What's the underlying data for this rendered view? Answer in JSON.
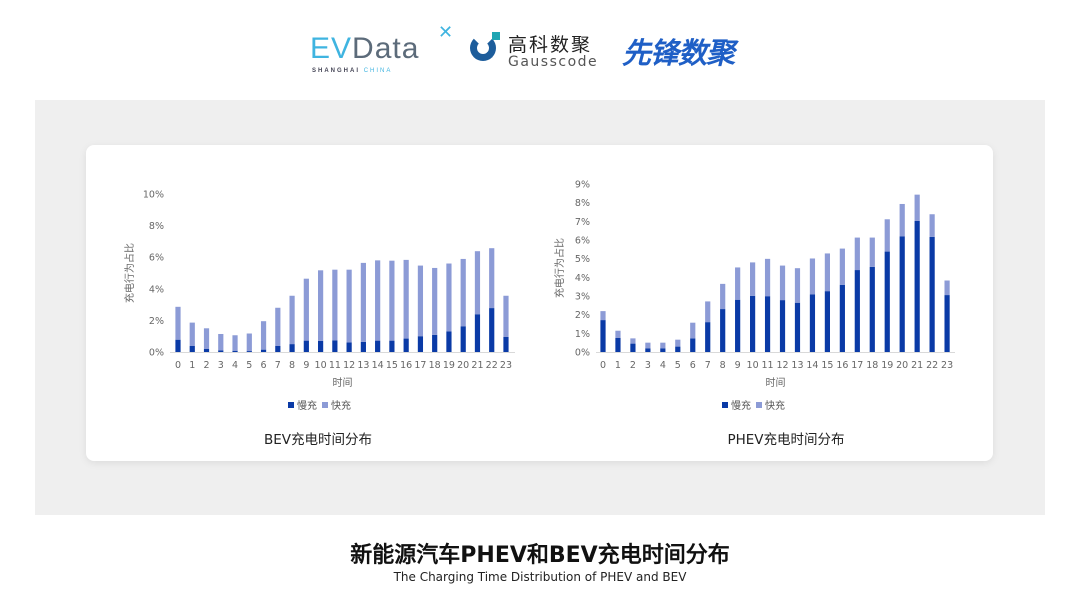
{
  "logos": {
    "evdata": {
      "text_e": "EV",
      "text_rest": "Data",
      "sub_a": "SHANGHAI",
      "sub_b": "CHINA"
    },
    "gausscode": {
      "cn": "高科数聚",
      "en": "Gausscode"
    },
    "xianfeng": {
      "cn": "先锋数聚"
    }
  },
  "colors": {
    "slow": "#0a3aa6",
    "fast": "#8c9bd6",
    "axis_text": "#666666",
    "background": "#efefef"
  },
  "title": "新能源汽车PHEV和BEV充电时间分布",
  "subtitle": "The Charging Time Distribution of PHEV and BEV",
  "chart_data": [
    {
      "type": "bar",
      "stacked": true,
      "title": "BEV充电时间分布",
      "xlabel": "时间",
      "ylabel": "充电行为占比",
      "categories": [
        "0",
        "1",
        "2",
        "3",
        "4",
        "5",
        "6",
        "7",
        "8",
        "9",
        "10",
        "11",
        "12",
        "13",
        "14",
        "15",
        "16",
        "17",
        "18",
        "19",
        "20",
        "21",
        "22",
        "23"
      ],
      "ylim": [
        0,
        10
      ],
      "yticks": [
        "0%",
        "2%",
        "4%",
        "6%",
        "8%",
        "10%"
      ],
      "ytick_values": [
        0,
        2,
        4,
        6,
        8,
        10
      ],
      "legend": "bottom",
      "grid": false,
      "series": [
        {
          "name": "慢充",
          "values": [
            0.78,
            0.38,
            0.19,
            0.1,
            0.08,
            0.06,
            0.15,
            0.38,
            0.5,
            0.72,
            0.7,
            0.74,
            0.61,
            0.64,
            0.72,
            0.72,
            0.85,
            1.0,
            1.08,
            1.31,
            1.63,
            2.39,
            2.78,
            0.95
          ]
        },
        {
          "name": "快充",
          "values": [
            2.08,
            1.48,
            1.31,
            1.04,
            0.98,
            1.11,
            1.8,
            2.42,
            3.06,
            3.92,
            4.47,
            4.47,
            4.6,
            5.0,
            5.08,
            5.06,
            4.98,
            4.47,
            4.24,
            4.29,
            4.26,
            3.99,
            3.79,
            2.61
          ]
        }
      ]
    },
    {
      "type": "bar",
      "stacked": true,
      "title": "PHEV充电时间分布",
      "xlabel": "时间",
      "ylabel": "充电行为占比",
      "categories": [
        "0",
        "1",
        "2",
        "3",
        "4",
        "5",
        "6",
        "7",
        "8",
        "9",
        "10",
        "11",
        "12",
        "13",
        "14",
        "15",
        "16",
        "17",
        "18",
        "19",
        "20",
        "21",
        "22",
        "23"
      ],
      "ylim": [
        0,
        9
      ],
      "yticks": [
        "0%",
        "1%",
        "2%",
        "3%",
        "4%",
        "5%",
        "6%",
        "7%",
        "8%",
        "9%"
      ],
      "ytick_values": [
        0,
        1,
        2,
        3,
        4,
        5,
        6,
        7,
        8,
        9
      ],
      "legend": "bottom",
      "grid": false,
      "series": [
        {
          "name": "慢充",
          "values": [
            1.71,
            0.75,
            0.45,
            0.2,
            0.2,
            0.29,
            0.73,
            1.6,
            2.3,
            2.8,
            3.01,
            2.99,
            2.78,
            2.64,
            3.08,
            3.26,
            3.6,
            4.39,
            4.56,
            5.38,
            6.2,
            7.02,
            6.17,
            3.05
          ]
        },
        {
          "name": "快充",
          "values": [
            0.48,
            0.39,
            0.28,
            0.3,
            0.3,
            0.37,
            0.84,
            1.11,
            1.35,
            1.73,
            1.79,
            2.0,
            1.85,
            1.85,
            1.93,
            2.02,
            1.94,
            1.74,
            1.57,
            1.73,
            1.73,
            1.41,
            1.21,
            0.78
          ]
        }
      ]
    }
  ]
}
